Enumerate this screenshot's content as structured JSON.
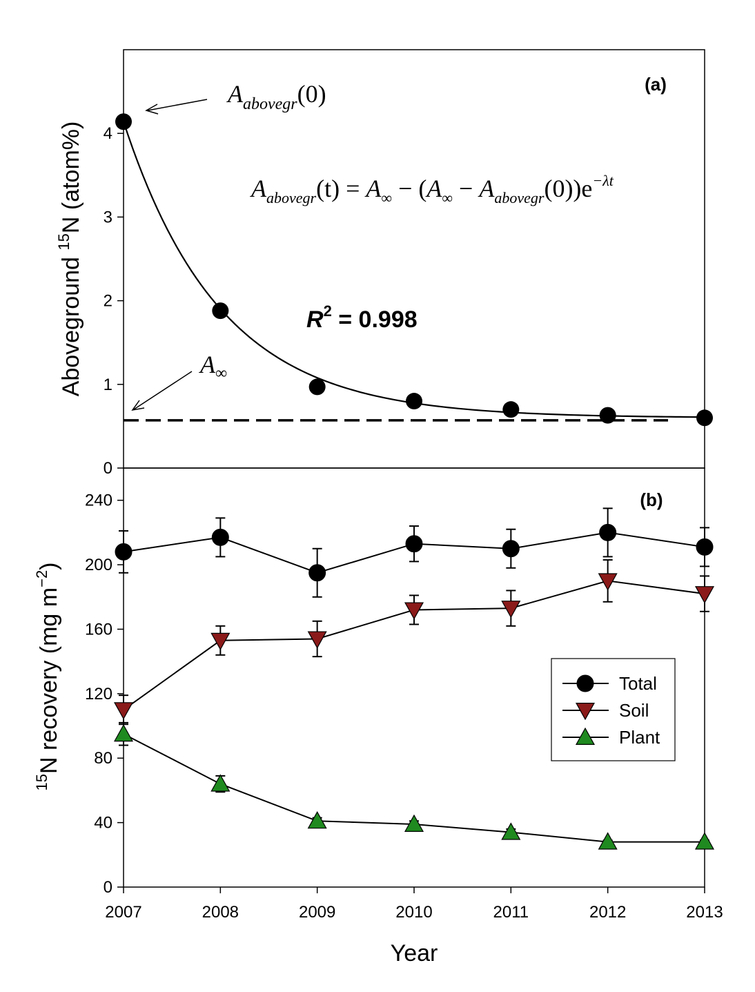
{
  "chart_data": [
    {
      "type": "scatter",
      "panel_label": "(a)",
      "ylabel_pre": "Aboveground ",
      "ylabel_sup": "15",
      "ylabel_post": "N (atom%)",
      "x": [
        2007,
        2008,
        2009,
        2010,
        2011,
        2012,
        2013
      ],
      "values": [
        4.14,
        1.88,
        0.97,
        0.8,
        0.7,
        0.63,
        0.6
      ],
      "fit": {
        "A0": 4.14,
        "Ainf": 0.6,
        "lambda": 1.0
      },
      "asymptote": 0.57,
      "ylim": [
        0,
        5
      ],
      "yticks": [
        0,
        1,
        2,
        3,
        4
      ],
      "annotations": {
        "a0_main": "A",
        "a0_sub": "abovegr",
        "a0_tail": "(0)",
        "ainf_main": "A",
        "ainf_sub": "∞",
        "eq_A1": "A",
        "eq_sub1": "abovegr",
        "eq_t": "(t) = ",
        "eq_A2": "A",
        "eq_inf1": "∞",
        "eq_mid": " − (",
        "eq_A3": "A",
        "eq_inf2": "∞",
        "eq_minus": " − ",
        "eq_A4": "A",
        "eq_sub2": "abovegr",
        "eq_end": "(0))e",
        "eq_exp": "−λt",
        "r2_R": "R",
        "r2_sup": "2",
        "r2_val": " = 0.998"
      }
    },
    {
      "type": "line",
      "panel_label": "(b)",
      "ylabel_sup": "15",
      "ylabel_mid": "N recovery (mg m",
      "ylabel_sup2": "−2",
      "ylabel_end": ")",
      "xlabel": "Year",
      "x": [
        2007,
        2008,
        2009,
        2010,
        2011,
        2012,
        2013
      ],
      "xticks": [
        "2007",
        "2008",
        "2009",
        "2010",
        "2011",
        "2012",
        "2013"
      ],
      "ylim": [
        0,
        260
      ],
      "yticks": [
        0,
        40,
        80,
        120,
        160,
        200,
        240
      ],
      "legend_position": "middle-right",
      "series": [
        {
          "name": "Total",
          "color": "#000000",
          "marker": "circle",
          "values": [
            208,
            217,
            195,
            213,
            210,
            220,
            211
          ],
          "errors": [
            13,
            12,
            15,
            11,
            12,
            15,
            12
          ]
        },
        {
          "name": "Soil",
          "color": "#8b1a1a",
          "marker": "triangle-down",
          "values": [
            110,
            153,
            154,
            172,
            173,
            190,
            182
          ],
          "errors": [
            9,
            9,
            11,
            9,
            11,
            13,
            11
          ]
        },
        {
          "name": "Plant",
          "color": "#1f8a1f",
          "marker": "triangle-up",
          "values": [
            95,
            64,
            41,
            39,
            34,
            28,
            28
          ],
          "errors": [
            7,
            5,
            2,
            2,
            2,
            1,
            1
          ]
        }
      ]
    }
  ]
}
